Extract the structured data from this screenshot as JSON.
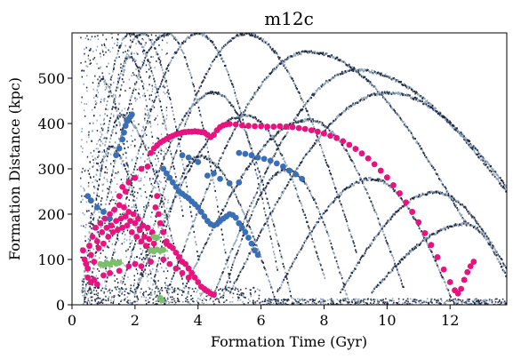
{
  "chart_data": {
    "type": "scatter",
    "title": "m12c",
    "xlabel": "Formation Time (Gyr)",
    "ylabel": "Formation Distance (kpc)",
    "xlim": [
      0,
      13.8
    ],
    "ylim": [
      0,
      600
    ],
    "xticks": [
      0,
      2,
      4,
      6,
      8,
      10,
      12
    ],
    "yticks": [
      0,
      100,
      200,
      300,
      400,
      500
    ],
    "grid": false,
    "colors": {
      "background_hist": "#1f2a44",
      "background_hist_light": "#8fa3b8",
      "magenta": "#e8137f",
      "blue": "#3a6fb5",
      "green": "#7bbf6a"
    },
    "series": [
      {
        "color": "#e8137f",
        "points": [
          [
            2.5,
            335
          ],
          [
            2.6,
            345
          ],
          [
            2.7,
            352
          ],
          [
            2.8,
            358
          ],
          [
            2.9,
            362
          ],
          [
            3.0,
            366
          ],
          [
            3.1,
            370
          ],
          [
            3.2,
            373
          ],
          [
            3.3,
            376
          ],
          [
            3.4,
            378
          ],
          [
            3.5,
            380
          ],
          [
            3.6,
            381
          ],
          [
            3.7,
            382
          ],
          [
            3.8,
            382
          ],
          [
            3.9,
            383
          ],
          [
            4.0,
            382
          ],
          [
            4.1,
            381
          ],
          [
            4.2,
            380
          ],
          [
            4.3,
            375
          ],
          [
            4.4,
            370
          ],
          [
            4.5,
            375
          ],
          [
            4.6,
            385
          ],
          [
            4.7,
            392
          ],
          [
            4.8,
            396
          ],
          [
            4.9,
            398
          ],
          [
            5.0,
            399
          ],
          [
            5.2,
            398
          ],
          [
            5.4,
            396
          ],
          [
            5.6,
            395
          ],
          [
            5.8,
            394
          ],
          [
            6.0,
            394
          ],
          [
            6.2,
            393
          ],
          [
            6.4,
            393
          ],
          [
            6.6,
            394
          ],
          [
            6.8,
            393
          ],
          [
            7.0,
            392
          ],
          [
            7.2,
            390
          ],
          [
            7.4,
            388
          ],
          [
            7.6,
            385
          ],
          [
            7.8,
            382
          ],
          [
            8.0,
            378
          ],
          [
            8.2,
            373
          ],
          [
            8.4,
            368
          ],
          [
            8.6,
            361
          ],
          [
            8.8,
            353
          ],
          [
            9.0,
            344
          ],
          [
            9.2,
            334
          ],
          [
            9.4,
            323
          ],
          [
            9.6,
            310
          ],
          [
            9.8,
            296
          ],
          [
            10.0,
            281
          ],
          [
            10.2,
            264
          ],
          [
            10.4,
            246
          ],
          [
            10.6,
            226
          ],
          [
            10.8,
            205
          ],
          [
            11.0,
            182
          ],
          [
            11.2,
            158
          ],
          [
            11.4,
            132
          ],
          [
            11.6,
            105
          ],
          [
            11.8,
            78
          ],
          [
            12.0,
            50
          ],
          [
            12.15,
            32
          ],
          [
            12.25,
            25
          ],
          [
            12.35,
            35
          ],
          [
            12.45,
            55
          ],
          [
            12.55,
            72
          ],
          [
            12.65,
            85
          ],
          [
            12.75,
            95
          ],
          [
            0.35,
            120
          ],
          [
            0.4,
            100
          ],
          [
            0.45,
            90
          ],
          [
            0.5,
            80
          ],
          [
            0.55,
            130
          ],
          [
            0.6,
            110
          ],
          [
            0.65,
            150
          ],
          [
            0.7,
            95
          ],
          [
            0.75,
            170
          ],
          [
            0.8,
            140
          ],
          [
            0.85,
            125
          ],
          [
            0.9,
            180
          ],
          [
            0.95,
            160
          ],
          [
            1.0,
            135
          ],
          [
            1.05,
            190
          ],
          [
            1.1,
            170
          ],
          [
            1.15,
            150
          ],
          [
            1.2,
            200
          ],
          [
            1.25,
            175
          ],
          [
            1.3,
            160
          ],
          [
            1.35,
            210
          ],
          [
            1.4,
            185
          ],
          [
            1.45,
            165
          ],
          [
            1.5,
            220
          ],
          [
            1.55,
            190
          ],
          [
            1.6,
            170
          ],
          [
            1.65,
            215
          ],
          [
            1.7,
            195
          ],
          [
            1.75,
            175
          ],
          [
            1.8,
            205
          ],
          [
            1.85,
            185
          ],
          [
            1.9,
            160
          ],
          [
            1.95,
            200
          ],
          [
            2.0,
            180
          ],
          [
            2.05,
            150
          ],
          [
            2.1,
            190
          ],
          [
            2.15,
            165
          ],
          [
            2.2,
            140
          ],
          [
            2.25,
            175
          ],
          [
            2.3,
            150
          ],
          [
            2.35,
            130
          ],
          [
            2.4,
            170
          ],
          [
            2.45,
            145
          ],
          [
            2.5,
            120
          ],
          [
            2.55,
            160
          ],
          [
            2.6,
            135
          ],
          [
            2.65,
            215
          ],
          [
            2.7,
            240
          ],
          [
            2.75,
            200
          ],
          [
            2.8,
            180
          ],
          [
            2.9,
            160
          ],
          [
            3.0,
            140
          ],
          [
            0.5,
            60
          ],
          [
            0.6,
            50
          ],
          [
            0.7,
            55
          ],
          [
            0.8,
            45
          ],
          [
            1.0,
            65
          ],
          [
            1.2,
            70
          ],
          [
            1.5,
            75
          ],
          [
            1.8,
            85
          ],
          [
            2.0,
            90
          ],
          [
            2.2,
            85
          ],
          [
            2.5,
            95
          ],
          [
            1.6,
            260
          ],
          [
            1.8,
            270
          ],
          [
            2.0,
            280
          ],
          [
            2.2,
            300
          ],
          [
            2.4,
            305
          ],
          [
            1.5,
            240
          ],
          [
            1.7,
            250
          ],
          [
            3.0,
            135
          ],
          [
            3.1,
            130
          ],
          [
            3.2,
            125
          ],
          [
            3.3,
            115
          ],
          [
            3.4,
            105
          ],
          [
            3.5,
            95
          ],
          [
            3.6,
            90
          ],
          [
            3.7,
            80
          ],
          [
            3.8,
            70
          ],
          [
            3.9,
            60
          ],
          [
            4.0,
            50
          ],
          [
            4.1,
            40
          ],
          [
            4.2,
            35
          ],
          [
            4.3,
            30
          ],
          [
            4.4,
            25
          ],
          [
            4.5,
            22
          ],
          [
            2.9,
            100
          ],
          [
            3.1,
            90
          ],
          [
            3.3,
            80
          ],
          [
            3.5,
            70
          ],
          [
            3.7,
            60
          ]
        ]
      },
      {
        "color": "#3a6fb5",
        "points": [
          [
            1.4,
            330
          ],
          [
            1.5,
            345
          ],
          [
            1.6,
            365
          ],
          [
            1.65,
            380
          ],
          [
            1.7,
            395
          ],
          [
            1.75,
            405
          ],
          [
            1.8,
            410
          ],
          [
            1.85,
            415
          ],
          [
            1.9,
            420
          ],
          [
            2.9,
            300
          ],
          [
            3.0,
            290
          ],
          [
            3.1,
            280
          ],
          [
            3.2,
            270
          ],
          [
            3.3,
            260
          ],
          [
            3.4,
            250
          ],
          [
            3.5,
            245
          ],
          [
            3.6,
            240
          ],
          [
            3.7,
            235
          ],
          [
            3.8,
            228
          ],
          [
            3.9,
            222
          ],
          [
            4.0,
            215
          ],
          [
            4.1,
            205
          ],
          [
            4.2,
            195
          ],
          [
            4.3,
            185
          ],
          [
            4.4,
            178
          ],
          [
            4.5,
            175
          ],
          [
            4.6,
            178
          ],
          [
            4.7,
            185
          ],
          [
            4.8,
            190
          ],
          [
            4.9,
            195
          ],
          [
            5.0,
            200
          ],
          [
            5.1,
            198
          ],
          [
            5.2,
            192
          ],
          [
            5.3,
            180
          ],
          [
            5.4,
            170
          ],
          [
            5.5,
            160
          ],
          [
            5.6,
            148
          ],
          [
            5.7,
            135
          ],
          [
            5.8,
            120
          ],
          [
            5.9,
            110
          ],
          [
            5.3,
            335
          ],
          [
            5.5,
            333
          ],
          [
            5.7,
            330
          ],
          [
            5.9,
            325
          ],
          [
            6.1,
            322
          ],
          [
            6.3,
            318
          ],
          [
            6.5,
            312
          ],
          [
            6.7,
            305
          ],
          [
            6.9,
            296
          ],
          [
            7.1,
            288
          ],
          [
            7.3,
            278
          ],
          [
            4.3,
            285
          ],
          [
            4.5,
            290
          ],
          [
            4.7,
            278
          ],
          [
            5.0,
            268
          ],
          [
            5.3,
            270
          ],
          [
            0.5,
            240
          ],
          [
            0.6,
            230
          ],
          [
            0.8,
            215
          ],
          [
            1.0,
            205
          ],
          [
            1.2,
            190
          ],
          [
            3.5,
            330
          ],
          [
            3.7,
            325
          ],
          [
            4.0,
            315
          ]
        ]
      },
      {
        "color": "#7bbf6a",
        "points": [
          [
            0.9,
            90
          ],
          [
            1.0,
            88
          ],
          [
            1.1,
            92
          ],
          [
            1.2,
            89
          ],
          [
            1.3,
            95
          ],
          [
            1.4,
            91
          ],
          [
            1.5,
            93
          ],
          [
            2.5,
            120
          ],
          [
            2.6,
            118
          ],
          [
            2.7,
            122
          ],
          [
            2.8,
            119
          ],
          [
            2.9,
            121
          ],
          [
            2.6,
            150
          ],
          [
            2.7,
            148
          ],
          [
            2.8,
            15
          ],
          [
            2.85,
            10
          ]
        ]
      }
    ]
  }
}
